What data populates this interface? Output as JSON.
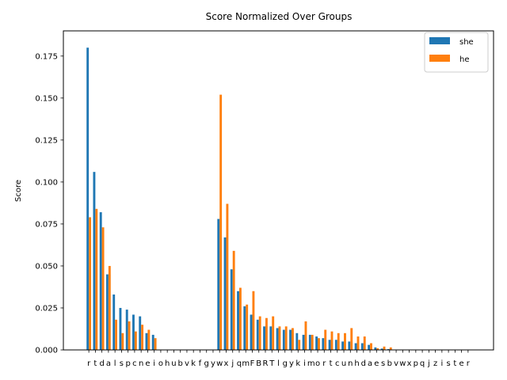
{
  "chart_data": {
    "type": "bar",
    "title": "Score Normalized Over Groups",
    "ylabel": "Score",
    "xlabel": "",
    "ylim": [
      0,
      0.19
    ],
    "yticks": [
      0.0,
      0.025,
      0.05,
      0.075,
      0.1,
      0.125,
      0.15,
      0.175
    ],
    "ytick_labels": [
      "0.000",
      "0.025",
      "0.050",
      "0.075",
      "0.100",
      "0.125",
      "0.150",
      "0.175"
    ],
    "grid": false,
    "legend_position": "top-right",
    "categories": [
      "r",
      "t",
      "d",
      "a",
      "l",
      "s",
      "p",
      "c",
      "n",
      "e",
      "i",
      "o",
      "h",
      "u",
      "b",
      "v",
      "k",
      "f",
      "g",
      "y",
      "w",
      "x",
      "j",
      "q",
      "m",
      "F",
      "B",
      "R",
      "T",
      "l",
      "g",
      "y",
      "k",
      "i",
      "m",
      "o",
      "r",
      "t",
      "c",
      "u",
      "n",
      "h",
      "d",
      "a",
      "e",
      "s",
      "b",
      "v",
      "w",
      "x",
      "p",
      "q",
      "j",
      "z",
      "i",
      "s",
      "t",
      "e",
      "r"
    ],
    "series": [
      {
        "name": "she",
        "color": "#1f77b4",
        "values": [
          0.18,
          0.106,
          0.082,
          0.045,
          0.033,
          0.025,
          0.024,
          0.021,
          0.02,
          0.01,
          0.009,
          0,
          0,
          0,
          0,
          0,
          0,
          0,
          0,
          0,
          0.078,
          0.067,
          0.048,
          0.035,
          0.026,
          0.021,
          0.018,
          0.014,
          0.014,
          0.013,
          0.012,
          0.012,
          0.01,
          0.009,
          0.009,
          0.008,
          0.007,
          0.006,
          0.006,
          0.005,
          0.005,
          0.004,
          0.004,
          0.003,
          0.0015,
          0.0008,
          0.0005,
          0,
          0,
          0,
          0,
          0,
          0,
          0,
          0,
          0,
          0,
          0,
          0
        ]
      },
      {
        "name": "he",
        "color": "#ff7f0e",
        "values": [
          0.079,
          0.084,
          0.073,
          0.05,
          0.018,
          0.01,
          0.017,
          0.011,
          0.015,
          0.012,
          0.007,
          0,
          0,
          0,
          0,
          0,
          0,
          0,
          0,
          0,
          0.152,
          0.087,
          0.059,
          0.037,
          0.027,
          0.035,
          0.02,
          0.019,
          0.02,
          0.014,
          0.014,
          0.013,
          0.006,
          0.017,
          0.009,
          0.007,
          0.012,
          0.011,
          0.01,
          0.01,
          0.013,
          0.008,
          0.008,
          0.004,
          0.001,
          0.002,
          0.0015,
          0,
          0,
          0,
          0,
          0,
          0,
          0,
          0,
          0,
          0,
          0,
          0
        ]
      }
    ]
  }
}
